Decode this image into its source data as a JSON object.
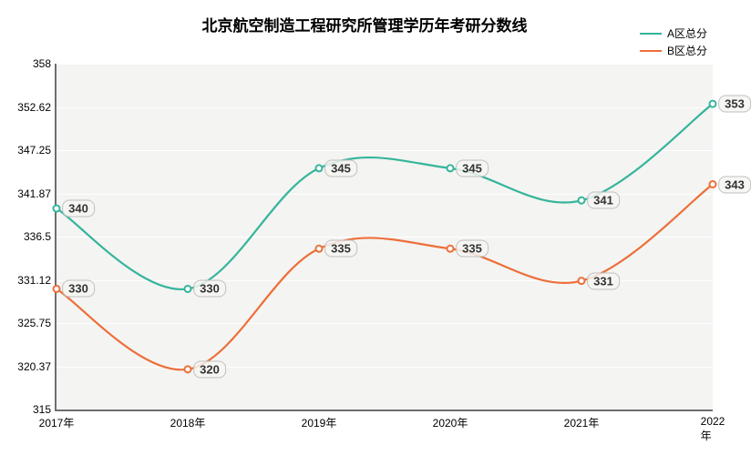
{
  "title": "北京航空制造工程研究所管理学历年考研分数线",
  "title_fontsize": 17,
  "background_color": "#ffffff",
  "plot_bg": "#f4f4f2",
  "grid_color": "#ffffff",
  "axis_color": "#6e6e6e",
  "legend": [
    {
      "label": "A区总分",
      "color": "#35b59b"
    },
    {
      "label": "B区总分",
      "color": "#ec6f3a"
    }
  ],
  "ylim": [
    315,
    358
  ],
  "ytick_labels": [
    "315",
    "320.37",
    "325.75",
    "331.12",
    "336.5",
    "341.87",
    "347.25",
    "352.62",
    "358"
  ],
  "ytick_values": [
    315,
    320.37,
    325.75,
    331.12,
    336.5,
    341.87,
    347.25,
    352.62,
    358
  ],
  "categories": [
    "2017年",
    "2018年",
    "2019年",
    "2020年",
    "2021年",
    "2022年"
  ],
  "series": [
    {
      "name": "A区总分",
      "color": "#35b59b",
      "values": [
        340,
        330,
        345,
        345,
        341,
        353
      ]
    },
    {
      "name": "B区总分",
      "color": "#ec6f3a",
      "values": [
        330,
        320,
        335,
        335,
        331,
        343
      ]
    }
  ],
  "line_width": 2.2,
  "marker_radius": 3.5,
  "label_fontsize": 13
}
